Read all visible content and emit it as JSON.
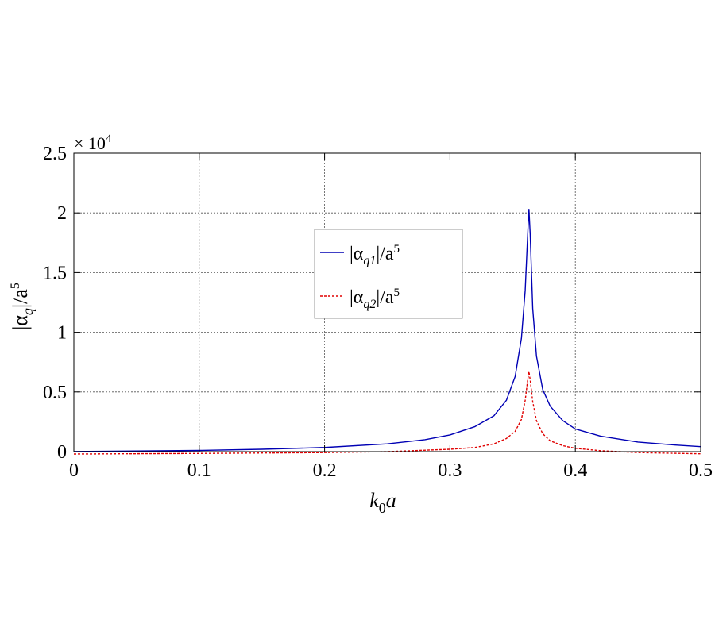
{
  "chart_data": {
    "type": "line",
    "title": "",
    "xlabel": {
      "main": "k",
      "sub": "0",
      "tail": "a"
    },
    "ylabel": {
      "pre": "|α",
      "sub": "q",
      "mid": "|/a",
      "sup": "5"
    },
    "y_multiplier": {
      "base": "× 10",
      "exp": "4"
    },
    "xlim": [
      0,
      0.5
    ],
    "ylim": [
      0,
      25000
    ],
    "x_ticks": [
      0,
      0.1,
      0.2,
      0.3,
      0.4,
      0.5
    ],
    "x_tick_labels": [
      "0",
      "0.1",
      "0.2",
      "0.3",
      "0.4",
      "0.5"
    ],
    "y_ticks": [
      0,
      5000,
      10000,
      15000,
      20000,
      25000
    ],
    "y_tick_labels": [
      "0",
      "0.5",
      "1",
      "1.5",
      "2",
      "2.5"
    ],
    "grid": true,
    "legend_position": "upper-center",
    "colors": {
      "q1": "#0000b4",
      "q2": "#e00000",
      "grid": "#555555",
      "axis": "#000000"
    },
    "series": [
      {
        "key": "q1",
        "name_parts": {
          "pre": "|α",
          "sub": "q1",
          "mid": "|/a",
          "sup": "5"
        },
        "style": "solid",
        "peak_x": 0.363,
        "peak_y": 20300,
        "x": [
          0,
          0.05,
          0.1,
          0.15,
          0.2,
          0.25,
          0.28,
          0.3,
          0.32,
          0.335,
          0.345,
          0.352,
          0.357,
          0.36,
          0.362,
          0.363,
          0.364,
          0.366,
          0.369,
          0.374,
          0.38,
          0.39,
          0.4,
          0.42,
          0.45,
          0.48,
          0.5
        ],
        "y": [
          10,
          50,
          100,
          200,
          350,
          650,
          1000,
          1400,
          2100,
          3000,
          4300,
          6300,
          9500,
          13500,
          18200,
          20300,
          18200,
          12000,
          8000,
          5200,
          3800,
          2600,
          1900,
          1300,
          800,
          550,
          420
        ]
      },
      {
        "key": "q2",
        "name_parts": {
          "pre": "|α",
          "sub": "q2",
          "mid": "|/a",
          "sup": "5"
        },
        "style": "dashed",
        "peak_x": 0.363,
        "peak_y": 6700,
        "x": [
          0,
          0.1,
          0.2,
          0.25,
          0.3,
          0.32,
          0.335,
          0.345,
          0.352,
          0.357,
          0.36,
          0.362,
          0.363,
          0.364,
          0.366,
          0.369,
          0.374,
          0.38,
          0.39,
          0.4,
          0.42,
          0.45,
          0.5
        ],
        "y": [
          -200,
          -150,
          -80,
          0,
          200,
          350,
          650,
          1100,
          1700,
          2700,
          4300,
          6000,
          6700,
          6000,
          4200,
          2600,
          1500,
          900,
          500,
          280,
          80,
          -80,
          -180
        ]
      }
    ]
  }
}
